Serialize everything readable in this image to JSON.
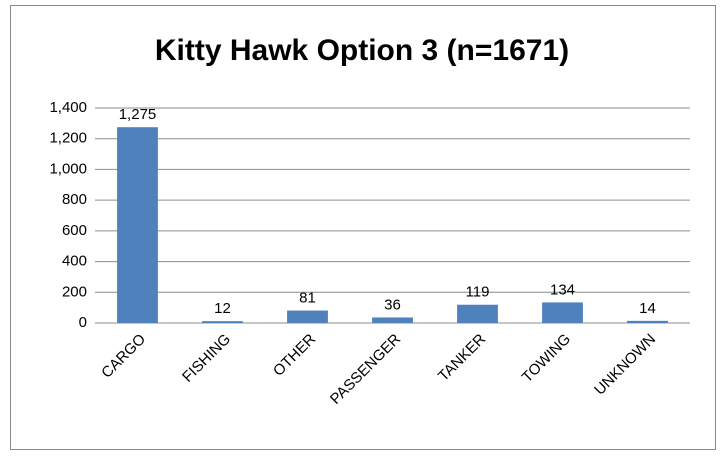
{
  "chart_data": {
    "type": "bar",
    "title": "Kitty Hawk Option 3 (n=1671)",
    "categories": [
      "CARGO",
      "FISHING",
      "OTHER",
      "PASSENGER",
      "TANKER",
      "TOWING",
      "UNKNOWN"
    ],
    "values": [
      1275,
      12,
      81,
      36,
      119,
      134,
      14
    ],
    "value_labels": [
      "1,275",
      "12",
      "81",
      "36",
      "119",
      "134",
      "14"
    ],
    "color": "#4f81bd",
    "ylim": [
      0,
      1400
    ],
    "yticks": [
      0,
      200,
      400,
      600,
      800,
      {
        "value": 1000,
        "label": "1,000"
      },
      {
        "value": 1200,
        "label": "1,200"
      },
      {
        "value": 1400,
        "label": "1,400"
      }
    ],
    "grid": true
  }
}
